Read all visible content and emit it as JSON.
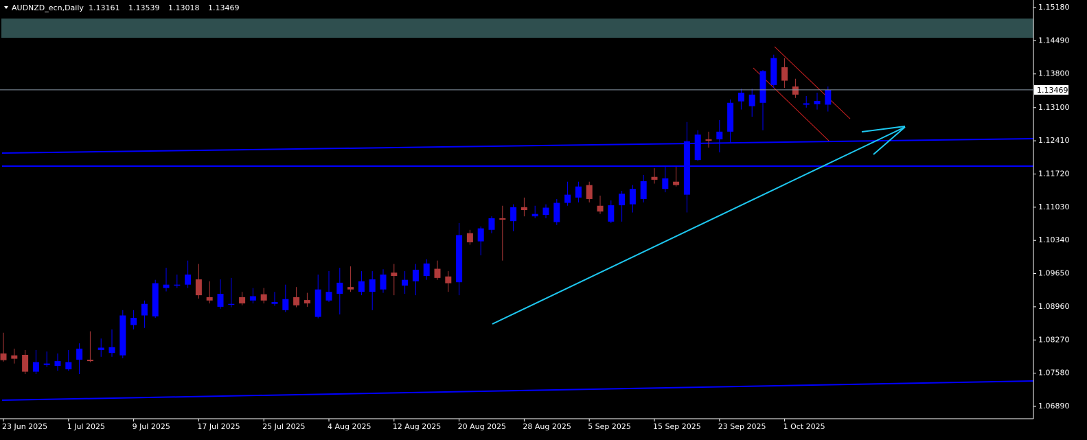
{
  "chart_data": {
    "type": "candlestick",
    "title": "AUDNZD_ecn,Daily",
    "categories": [
      "23 Jun 2025",
      null,
      null,
      null,
      null,
      null,
      "1 Jul 2025",
      null,
      null,
      null,
      null,
      null,
      "9 Jul 2025",
      null,
      null,
      null,
      null,
      null,
      "17 Jul 2025",
      null,
      null,
      null,
      null,
      null,
      "25 Jul 2025",
      null,
      null,
      null,
      null,
      null,
      "4 Aug 2025",
      null,
      null,
      null,
      null,
      null,
      "12 Aug 2025",
      null,
      null,
      null,
      null,
      null,
      "20 Aug 2025",
      null,
      null,
      null,
      null,
      null,
      "28 Aug 2025",
      null,
      null,
      null,
      null,
      null,
      "5 Sep 2025",
      null,
      null,
      null,
      null,
      null,
      "15 Sep 2025",
      null,
      null,
      null,
      null,
      null,
      "23 Sep 2025",
      null,
      null,
      null,
      null,
      null,
      "1 Oct 2025",
      null,
      null,
      null,
      null
    ],
    "open": [
      1.0799,
      1.0795,
      1.0796,
      1.0761,
      1.0775,
      1.0773,
      1.0766,
      1.0786,
      1.0786,
      1.0806,
      1.08,
      1.0795,
      1.0858,
      1.0878,
      1.0876,
      1.0935,
      1.094,
      1.0942,
      1.0953,
      1.0916,
      1.0896,
      1.09,
      1.0916,
      1.0909,
      1.0922,
      1.0902,
      1.0889,
      1.0916,
      1.091,
      1.0875,
      1.0909,
      1.0923,
      1.0937,
      1.0927,
      1.0927,
      1.0932,
      1.0967,
      1.094,
      1.0949,
      1.096,
      1.0975,
      1.0959,
      1.0947,
      1.1049,
      1.1032,
      1.1056,
      1.108,
      1.1074,
      1.1103,
      1.1084,
      1.1087,
      1.1072,
      1.1112,
      1.1123,
      1.1149,
      1.1106,
      1.1073,
      1.1107,
      1.1109,
      1.112,
      1.1166,
      1.1141,
      1.1156,
      1.1129,
      1.1201,
      1.1244,
      1.1244,
      1.126,
      1.1323,
      1.1313,
      1.132,
      1.1357,
      1.1394,
      1.1354,
      1.1316,
      1.1317,
      1.13161
    ],
    "high": [
      1.0842,
      1.0809,
      1.0806,
      1.0806,
      1.0803,
      1.0799,
      1.0806,
      1.082,
      1.0845,
      1.083,
      1.0849,
      1.0889,
      1.0889,
      1.0909,
      1.0952,
      1.0977,
      1.0963,
      1.0992,
      1.0985,
      1.0949,
      1.0953,
      1.0956,
      1.0927,
      1.0935,
      1.0935,
      1.0927,
      1.0942,
      1.0937,
      1.0925,
      1.0963,
      1.097,
      1.0977,
      1.098,
      1.097,
      1.097,
      1.0974,
      1.0985,
      1.097,
      1.0985,
      1.0995,
      1.0992,
      1.097,
      1.107,
      1.1056,
      1.1063,
      1.1084,
      1.1106,
      1.1109,
      1.1123,
      1.1106,
      1.1109,
      1.112,
      1.1156,
      1.1156,
      1.1156,
      1.1127,
      1.1117,
      1.1137,
      1.1149,
      1.117,
      1.1184,
      1.1187,
      1.1187,
      1.128,
      1.1263,
      1.126,
      1.1284,
      1.1327,
      1.1349,
      1.1349,
      1.1388,
      1.142,
      1.1413,
      1.137,
      1.1334,
      1.1341,
      1.13539
    ],
    "low": [
      1.0782,
      1.0778,
      1.0756,
      1.0756,
      1.0771,
      1.0763,
      1.0763,
      1.0756,
      1.0781,
      1.0792,
      1.0792,
      1.0789,
      1.0849,
      1.0852,
      1.0873,
      1.0928,
      1.0935,
      1.0935,
      1.0913,
      1.0903,
      1.0892,
      1.0895,
      1.0899,
      1.0903,
      1.0903,
      1.0898,
      1.0885,
      1.0895,
      1.0896,
      1.0872,
      1.0906,
      1.088,
      1.0927,
      1.092,
      1.0889,
      1.0925,
      1.092,
      1.0923,
      1.092,
      1.0952,
      1.0952,
      1.0927,
      1.092,
      1.1025,
      1.1003,
      1.1049,
      1.0992,
      1.1053,
      1.1084,
      1.108,
      1.108,
      1.1066,
      1.1106,
      1.1113,
      1.1113,
      1.1089,
      1.107,
      1.1073,
      1.1092,
      1.1113,
      1.1152,
      1.1134,
      1.1146,
      1.1092,
      1.1199,
      1.1227,
      1.1217,
      1.1237,
      1.1306,
      1.1291,
      1.1263,
      1.1351,
      1.1351,
      1.133,
      1.131,
      1.1306,
      1.13018
    ],
    "close": [
      1.0785,
      1.0788,
      1.0761,
      1.0781,
      1.0778,
      1.0783,
      1.0781,
      1.0809,
      1.0783,
      1.0811,
      1.0812,
      1.0878,
      1.0873,
      1.0902,
      1.0945,
      1.0942,
      1.0942,
      1.0963,
      1.092,
      1.0909,
      1.0923,
      1.0902,
      1.0903,
      1.0918,
      1.0909,
      1.0906,
      1.0912,
      1.0899,
      1.0903,
      1.0932,
      1.0927,
      1.0946,
      1.0932,
      1.0949,
      1.0953,
      1.0963,
      1.096,
      1.0952,
      1.0973,
      1.0986,
      1.0956,
      1.0945,
      1.1045,
      1.103,
      1.1059,
      1.108,
      1.1077,
      1.1103,
      1.1097,
      1.1089,
      1.1102,
      1.1112,
      1.1129,
      1.1146,
      1.112,
      1.1094,
      1.1107,
      1.1131,
      1.1141,
      1.1157,
      1.116,
      1.1163,
      1.1149,
      1.124,
      1.1254,
      1.1241,
      1.126,
      1.132,
      1.1341,
      1.1337,
      1.1386,
      1.1413,
      1.1366,
      1.1337,
      1.1319,
      1.1324,
      1.13469
    ],
    "up_color": "#0000ff",
    "down_color": "#b03a3a",
    "ylim": [
      1.06633,
      1.15337
    ],
    "yticks": [
      {
        "value": 1.1518,
        "label": "1.15180"
      },
      {
        "value": 1.1449,
        "label": "1.14490"
      },
      {
        "value": 1.138,
        "label": "1.13800"
      },
      {
        "value": 1.131,
        "label": "1.13100"
      },
      {
        "value": 1.1241,
        "label": "1.12410"
      },
      {
        "value": 1.1172,
        "label": "1.11720"
      },
      {
        "value": 1.1103,
        "label": "1.11030"
      },
      {
        "value": 1.1034,
        "label": "1.10340"
      },
      {
        "value": 1.0965,
        "label": "1.09650"
      },
      {
        "value": 1.0896,
        "label": "1.08960"
      },
      {
        "value": 1.0827,
        "label": "1.08270"
      },
      {
        "value": 1.0758,
        "label": "1.07580"
      },
      {
        "value": 1.0689,
        "label": "1.06890"
      }
    ]
  }
}
